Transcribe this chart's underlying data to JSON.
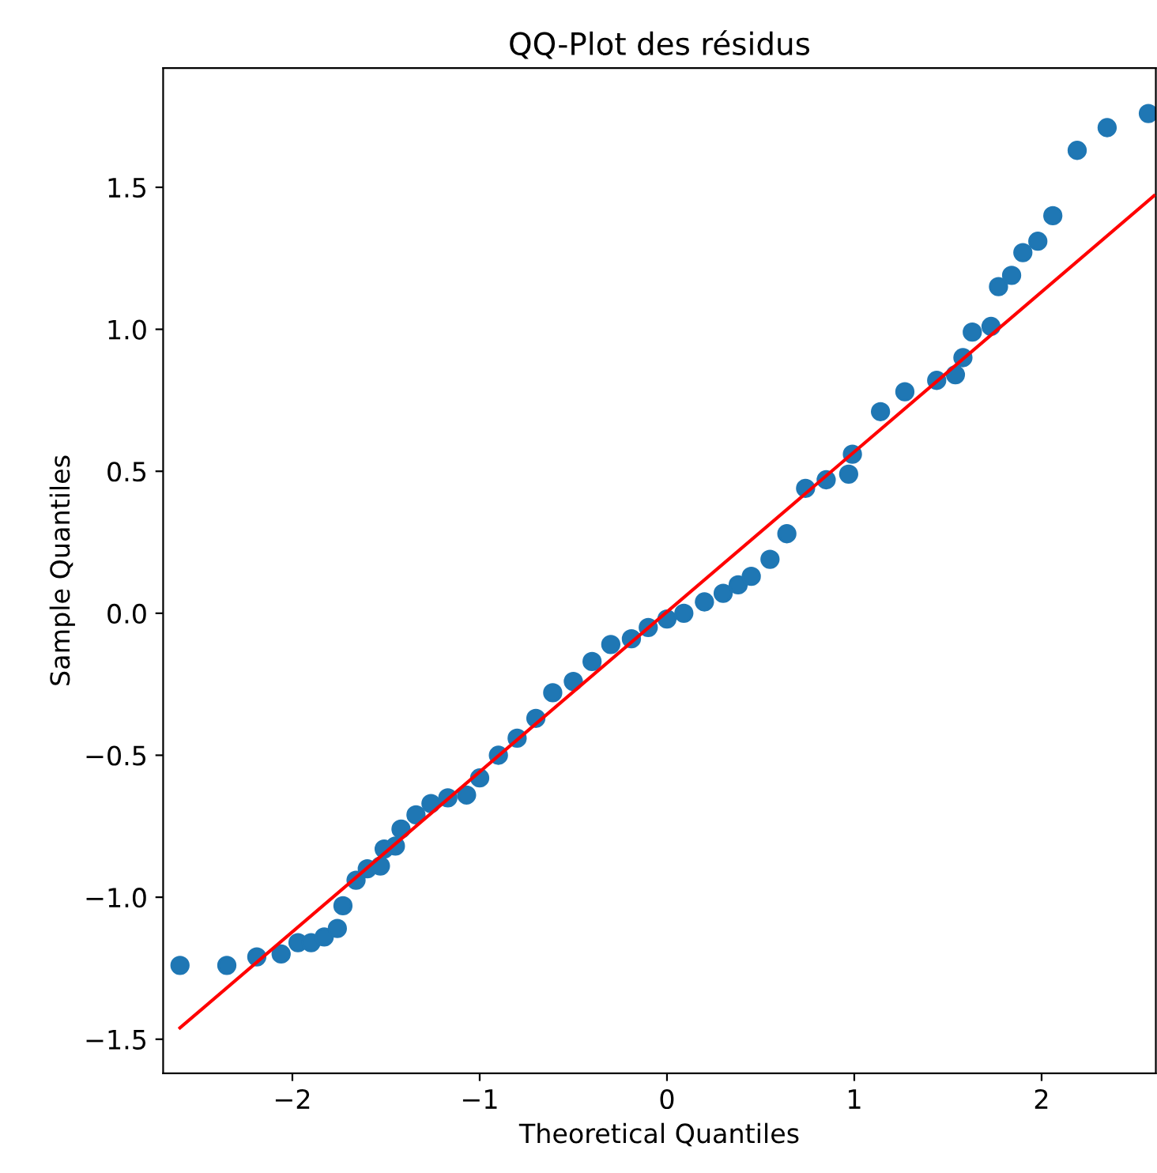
{
  "chart_data": {
    "type": "scatter",
    "title": "QQ-Plot des résidus",
    "xlabel": "Theoretical Quantiles",
    "ylabel": "Sample Quantiles",
    "series": [
      {
        "color": "#1f77b4",
        "marker": "circle",
        "x": [
          -2.6,
          -2.35,
          -2.19,
          -2.06,
          -1.97,
          -1.9,
          -1.83,
          -1.76,
          -1.73,
          -1.66,
          -1.6,
          -1.53,
          -1.51,
          -1.45,
          -1.42,
          -1.34,
          -1.26,
          -1.17,
          -1.07,
          -1.0,
          -0.9,
          -0.8,
          -0.7,
          -0.61,
          -0.5,
          -0.4,
          -0.3,
          -0.19,
          -0.1,
          0.0,
          0.09,
          0.2,
          0.3,
          0.38,
          0.45,
          0.55,
          0.64,
          0.74,
          0.85,
          0.97,
          0.99,
          1.14,
          1.27,
          1.44,
          1.54,
          1.58,
          1.63,
          1.73,
          1.77,
          1.84,
          1.9,
          1.98,
          2.06,
          2.19,
          2.35,
          2.57
        ],
        "values": [
          -1.24,
          -1.24,
          -1.21,
          -1.2,
          -1.16,
          -1.16,
          -1.14,
          -1.11,
          -1.03,
          -0.94,
          -0.9,
          -0.89,
          -0.83,
          -0.82,
          -0.76,
          -0.71,
          -0.67,
          -0.65,
          -0.64,
          -0.58,
          -0.5,
          -0.44,
          -0.37,
          -0.28,
          -0.24,
          -0.17,
          -0.11,
          -0.09,
          -0.05,
          -0.02,
          0.0,
          0.04,
          0.07,
          0.1,
          0.13,
          0.19,
          0.28,
          0.44,
          0.47,
          0.49,
          0.56,
          0.71,
          0.78,
          0.82,
          0.84,
          0.9,
          0.99,
          1.01,
          1.15,
          1.19,
          1.27,
          1.31,
          1.4,
          1.63,
          1.71,
          1.76
        ]
      },
      {
        "type": "line",
        "marker": "none",
        "color": "#ff0000",
        "x": [
          -2.6,
          2.6
        ],
        "values": [
          -1.46,
          1.47
        ]
      }
    ],
    "xlim": [
      -2.69,
      2.61
    ],
    "ylim": [
      -1.62,
      1.92
    ],
    "xticks": [
      {
        "value": -2,
        "label": "−2"
      },
      {
        "value": -1,
        "label": "−1"
      },
      0,
      1,
      2
    ],
    "yticks": [
      {
        "value": -1.5,
        "label": "−1.5"
      },
      {
        "value": -1.0,
        "label": "−1.0"
      },
      {
        "value": -0.5,
        "label": "−0.5"
      },
      {
        "value": 0.0,
        "label": "0.0"
      },
      {
        "value": 0.5,
        "label": "0.5"
      },
      {
        "value": 1.0,
        "label": "1.0"
      },
      {
        "value": 1.5,
        "label": "1.5"
      }
    ],
    "grid": false
  }
}
